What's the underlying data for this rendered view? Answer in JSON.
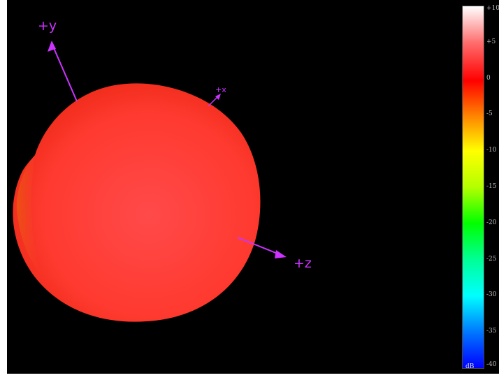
{
  "axes": {
    "y_label": "+y",
    "x_label": "+x",
    "z_label": "+z",
    "axis_color": "#cc33ff"
  },
  "surface": {
    "color": "#ff3b3b",
    "shadow_color": "#e8280f"
  },
  "colorbar": {
    "ticks": [
      "+10",
      "+5",
      "0",
      "-5",
      "-10",
      "-15",
      "-20",
      "-25",
      "-30",
      "-35",
      "-40"
    ],
    "unit": "dB",
    "gradient": [
      "#ffffff",
      "#ff6e6e",
      "#ff0000",
      "#ff8000",
      "#ffff00",
      "#b4ff00",
      "#00ff00",
      "#00ff96",
      "#00ffff",
      "#0078ff",
      "#0000ff"
    ]
  }
}
